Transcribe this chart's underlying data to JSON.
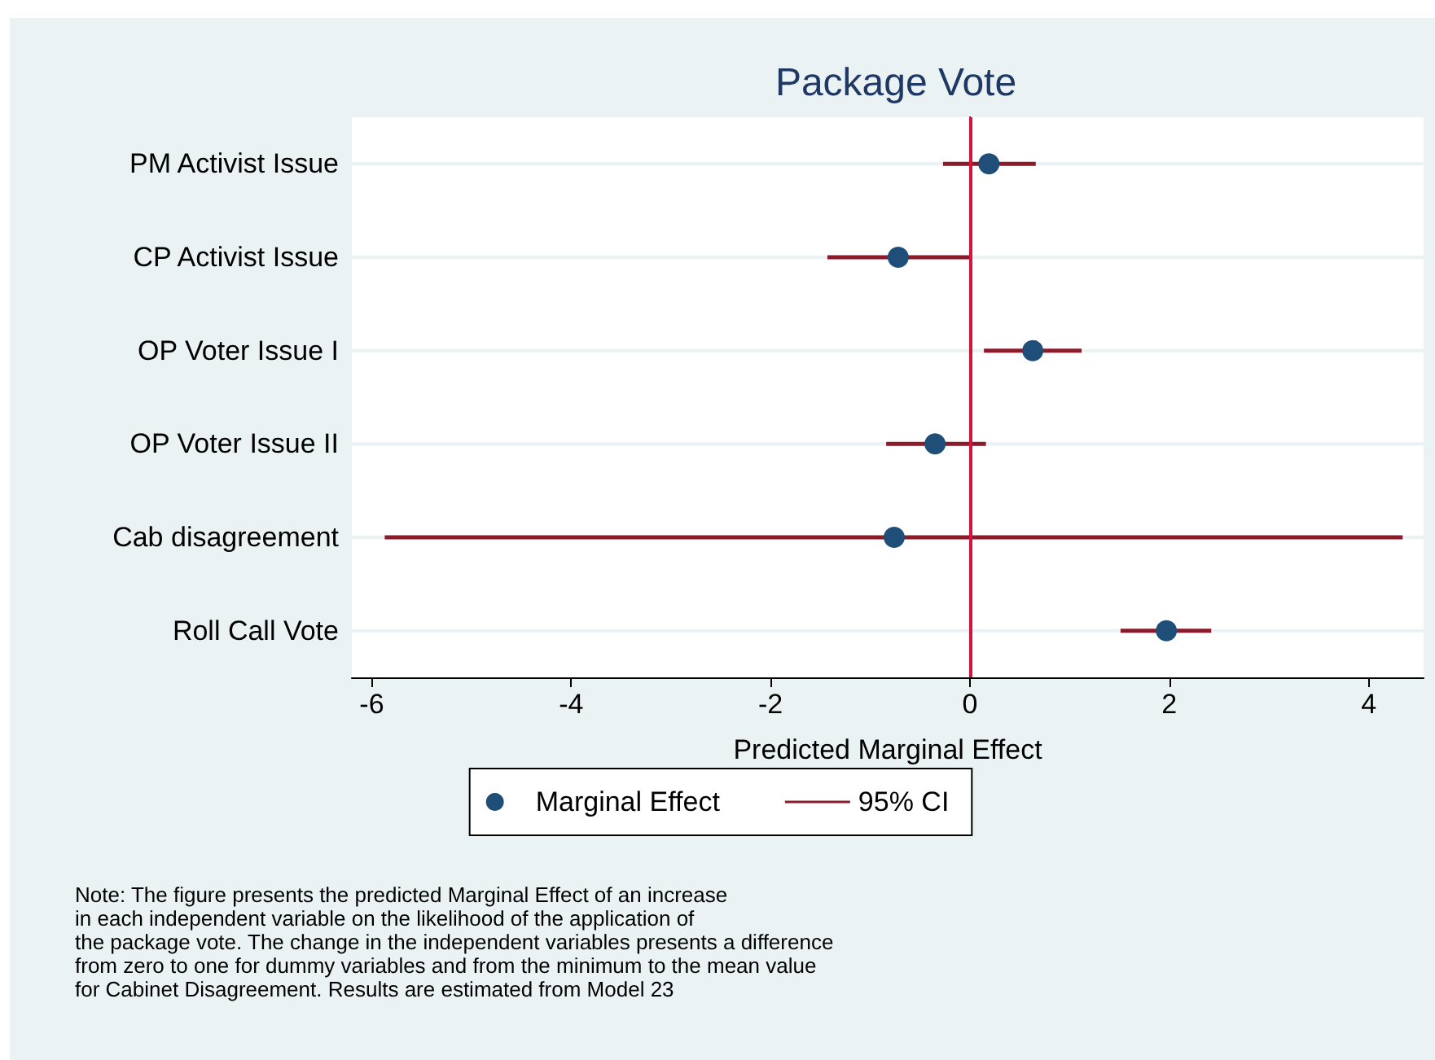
{
  "chart_data": {
    "type": "scatter",
    "title": "Package Vote",
    "xlabel": "Predicted Marginal Effect",
    "orientation": "horizontal",
    "categories": [
      "PM Activist Issue",
      "CP Activist Issue",
      "OP Voter Issue I",
      "OP Voter Issue II",
      "Cab disagreement",
      "Roll Call Vote"
    ],
    "series": [
      {
        "name": "Marginal Effect",
        "color": "#1f4e79",
        "values": [
          0.19,
          -0.72,
          0.63,
          -0.35,
          -0.76,
          1.97
        ]
      },
      {
        "name": "95% CI",
        "type": "bar",
        "color": "#8b1a2b",
        "base": [
          -0.27,
          -1.43,
          0.14,
          -0.84,
          -5.87,
          1.51
        ],
        "values": [
          0.93,
          1.43,
          0.98,
          1.0,
          10.21,
          0.91
        ]
      }
    ],
    "xlim": [
      -6.2,
      4.55
    ],
    "xticks": [
      -6,
      -4,
      -2,
      0,
      2,
      4
    ],
    "grid": "y",
    "legend": "bottom",
    "marker": "circle",
    "ref_lines": [
      {
        "axis": "x",
        "value": 0,
        "color": "#d4143c"
      }
    ],
    "annotations": [
      "Note: The figure presents the predicted Marginal Effect of an increase\nin each independent variable on the likelihood of the application of\nthe package vote. The change in the independent variables presents a difference\nfrom zero to one for dummy variables and from the minimum to the mean value\nfor Cabinet Disagreement. Results are estimated from Model 23"
    ]
  }
}
